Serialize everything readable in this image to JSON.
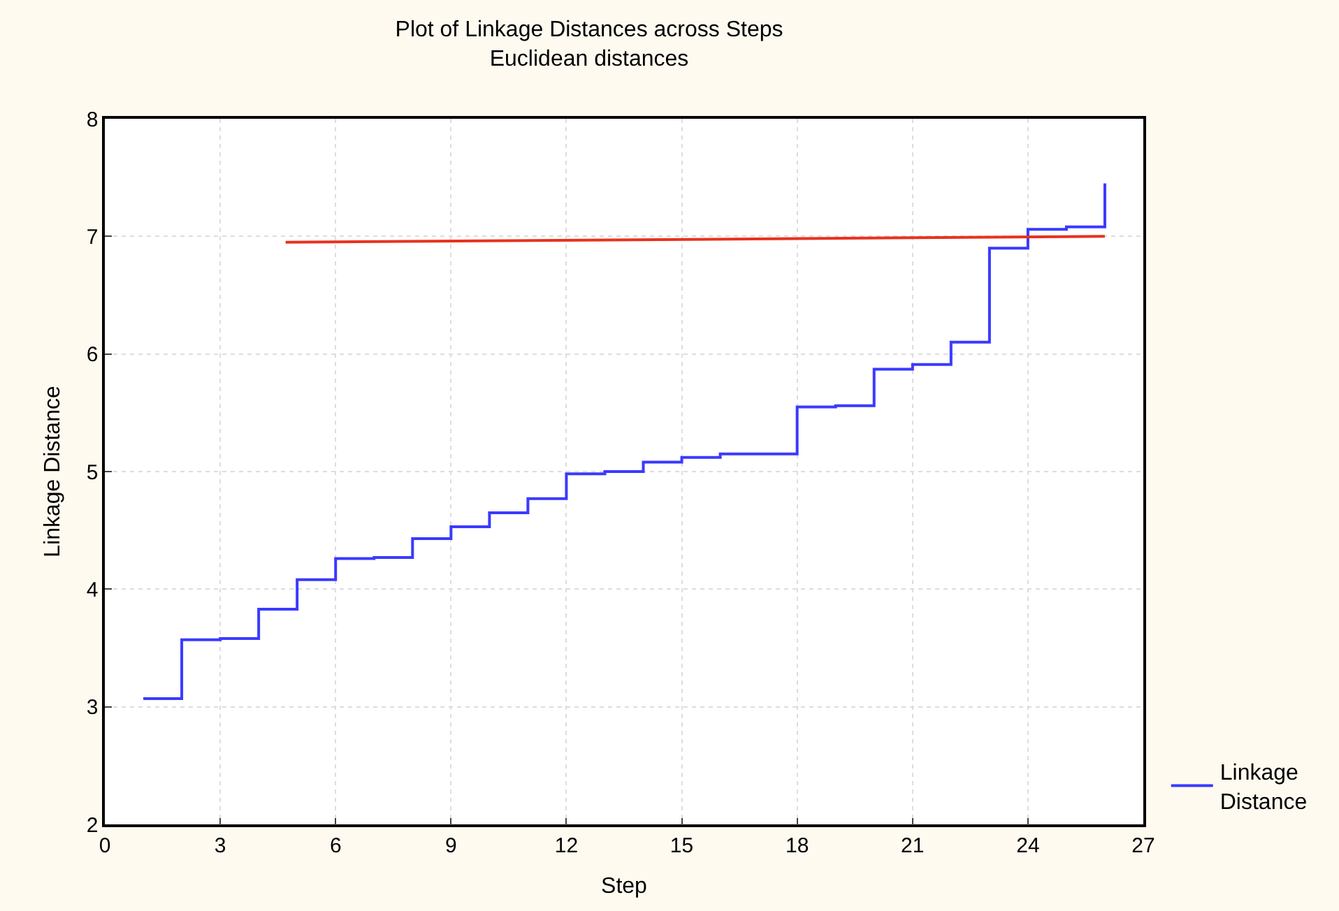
{
  "chart_data": {
    "type": "step",
    "title": "Plot of Linkage Distances across Steps",
    "subtitle": "Euclidean distances",
    "xlabel": "Step",
    "ylabel": "Linkage Distance",
    "series": [
      {
        "name": "Linkage Distance",
        "color": "#3a3aff",
        "x": [
          1,
          2,
          3,
          4,
          5,
          6,
          7,
          8,
          9,
          10,
          11,
          12,
          13,
          14,
          15,
          16,
          17,
          18,
          19,
          20,
          21,
          22,
          23,
          24,
          25,
          26
        ],
        "values": [
          3.07,
          3.57,
          3.58,
          3.83,
          4.08,
          4.26,
          4.27,
          4.43,
          4.53,
          4.65,
          4.77,
          4.98,
          5.0,
          5.08,
          5.12,
          5.15,
          5.15,
          5.55,
          5.56,
          5.87,
          5.91,
          6.1,
          6.9,
          7.06,
          7.08,
          7.45
        ]
      },
      {
        "type": "line",
        "color": "#e8321e",
        "x": [
          4.7,
          26
        ],
        "values": [
          6.95,
          7.0
        ]
      }
    ],
    "xlim": [
      0,
      27
    ],
    "xticks": [
      0,
      3,
      6,
      9,
      12,
      15,
      18,
      21,
      24,
      27
    ],
    "ylim": [
      2,
      8
    ],
    "yticks": [
      2,
      3,
      4,
      5,
      6,
      7,
      8
    ],
    "grid": true,
    "legend": "bottom right"
  }
}
